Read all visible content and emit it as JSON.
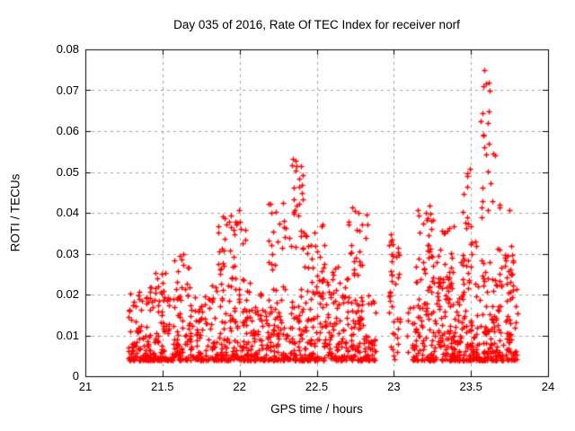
{
  "chart_data": {
    "type": "scatter",
    "title": "Day 035 of 2016, Rate Of TEC Index for receiver norf",
    "xlabel": "GPS time / hours",
    "ylabel": "ROTI / TECUs",
    "xlim": [
      21,
      24
    ],
    "ylim": [
      0,
      0.08
    ],
    "xticks": {
      "values": [
        21,
        21.5,
        22,
        22.5,
        23,
        23.5,
        24
      ],
      "labels": [
        "21",
        "21.5",
        "22",
        "22.5",
        "23",
        "23.5",
        "24"
      ]
    },
    "yticks": {
      "values": [
        0,
        0.01,
        0.02,
        0.03,
        0.04,
        0.05,
        0.06,
        0.07,
        0.08
      ],
      "labels": [
        "0",
        "0.01",
        "0.02",
        "0.03",
        "0.04",
        "0.05",
        "0.06",
        "0.07",
        "0.08"
      ]
    },
    "grid": true,
    "grid_style": "dashed",
    "grid_color": "#a0a0a0",
    "border_color": "#000000",
    "legend_position": "none",
    "marker": {
      "shape": "plus",
      "color": "#ff0000",
      "size": 7
    },
    "x_data_range": [
      21.28,
      23.81
    ],
    "y_data_max_observed": 0.075,
    "seed": 35,
    "clusters": [
      {
        "t0": 21.28,
        "t1": 21.5,
        "n": 150,
        "ymin": 0.004,
        "ymax": 0.022,
        "k": 2.6
      },
      {
        "t0": 21.5,
        "t1": 21.8,
        "n": 170,
        "ymin": 0.004,
        "ymax": 0.02,
        "k": 2.6
      },
      {
        "t0": 21.8,
        "t1": 22.1,
        "n": 170,
        "ymin": 0.004,
        "ymax": 0.024,
        "k": 2.6
      },
      {
        "t0": 22.1,
        "t1": 22.4,
        "n": 170,
        "ymin": 0.004,
        "ymax": 0.022,
        "k": 2.6
      },
      {
        "t0": 22.4,
        "t1": 22.7,
        "n": 170,
        "ymin": 0.004,
        "ymax": 0.025,
        "k": 2.6
      },
      {
        "t0": 22.7,
        "t1": 22.88,
        "n": 110,
        "ymin": 0.004,
        "ymax": 0.02,
        "k": 2.6
      },
      {
        "t0": 23.12,
        "t1": 23.45,
        "n": 230,
        "ymin": 0.004,
        "ymax": 0.028,
        "k": 2.6
      },
      {
        "t0": 23.45,
        "t1": 23.8,
        "n": 240,
        "ymin": 0.004,
        "ymax": 0.03,
        "k": 2.6
      },
      {
        "t0": 21.42,
        "t1": 21.52,
        "n": 12,
        "ymin": 0.018,
        "ymax": 0.026,
        "k": 1
      },
      {
        "t0": 21.55,
        "t1": 21.68,
        "n": 14,
        "ymin": 0.02,
        "ymax": 0.03,
        "k": 1
      },
      {
        "t0": 21.85,
        "t1": 21.98,
        "n": 28,
        "ymin": 0.022,
        "ymax": 0.04,
        "k": 1
      },
      {
        "t0": 21.97,
        "t1": 22.05,
        "n": 8,
        "ymin": 0.028,
        "ymax": 0.042,
        "k": 1
      },
      {
        "t0": 22.18,
        "t1": 22.3,
        "n": 20,
        "ymin": 0.025,
        "ymax": 0.043,
        "k": 1
      },
      {
        "t0": 22.32,
        "t1": 22.42,
        "n": 28,
        "ymin": 0.028,
        "ymax": 0.055,
        "k": 1
      },
      {
        "t0": 22.42,
        "t1": 22.55,
        "n": 24,
        "ymin": 0.02,
        "ymax": 0.038,
        "k": 1
      },
      {
        "t0": 22.58,
        "t1": 22.7,
        "n": 10,
        "ymin": 0.016,
        "ymax": 0.028,
        "k": 1
      },
      {
        "t0": 22.7,
        "t1": 22.83,
        "n": 24,
        "ymin": 0.022,
        "ymax": 0.042,
        "k": 1
      },
      {
        "t0": 22.97,
        "t1": 23.04,
        "n": 40,
        "ymin": 0.004,
        "ymax": 0.037,
        "k": 1
      },
      {
        "t0": 23.08,
        "t1": 23.13,
        "n": 6,
        "ymin": 0.005,
        "ymax": 0.018,
        "k": 1
      },
      {
        "t0": 23.15,
        "t1": 23.26,
        "n": 24,
        "ymin": 0.024,
        "ymax": 0.042,
        "k": 1
      },
      {
        "t0": 23.28,
        "t1": 23.4,
        "n": 18,
        "ymin": 0.022,
        "ymax": 0.038,
        "k": 1
      },
      {
        "t0": 23.44,
        "t1": 23.55,
        "n": 18,
        "ymin": 0.028,
        "ymax": 0.051,
        "k": 1
      },
      {
        "t0": 23.55,
        "t1": 23.63,
        "n": 12,
        "ymin": 0.055,
        "ymax": 0.075,
        "k": 1
      },
      {
        "t0": 23.56,
        "t1": 23.66,
        "n": 12,
        "ymin": 0.038,
        "ymax": 0.062,
        "k": 1
      },
      {
        "t0": 23.66,
        "t1": 23.78,
        "n": 16,
        "ymin": 0.018,
        "ymax": 0.046,
        "k": 1
      }
    ]
  }
}
